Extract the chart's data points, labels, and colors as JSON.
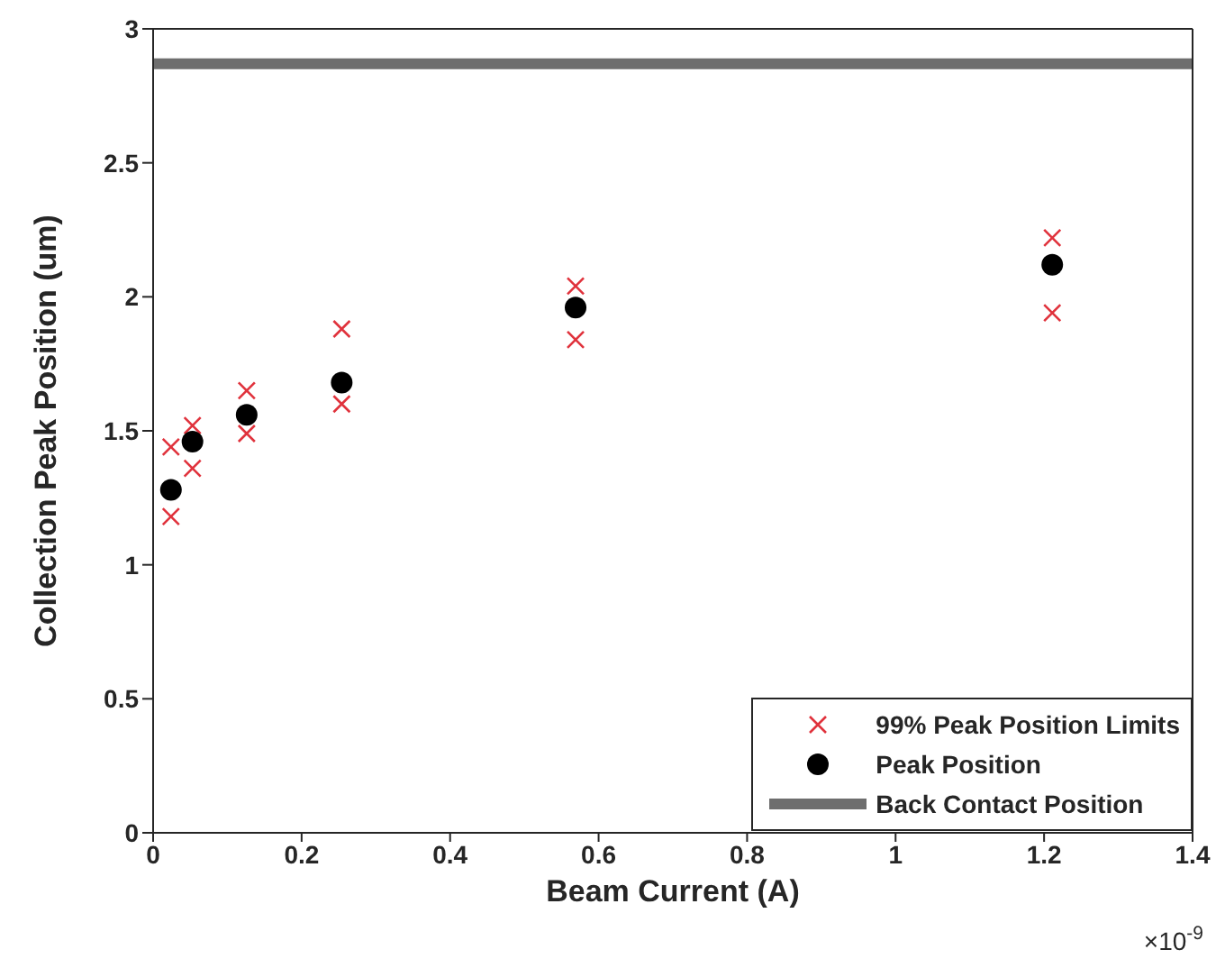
{
  "chart_data": {
    "type": "scatter",
    "xlabel": "Beam Current (A)",
    "ylabel": "Collection Peak Position (um)",
    "xlim": [
      0,
      1.4
    ],
    "xticks": [
      0,
      0.2,
      0.4,
      0.6,
      0.8,
      1,
      1.2,
      1.4
    ],
    "ylim": [
      0,
      3
    ],
    "yticks": [
      0,
      0.5,
      1,
      1.5,
      2,
      2.5,
      3
    ],
    "legend": "bottom right",
    "annotations": [
      "×10$^{-9}$"
    ],
    "series": [
      {
        "name": "99% Peak Position Limits",
        "marker": "cross",
        "color": "#e0323c",
        "x": [
          0.024,
          0.024,
          0.053,
          0.053,
          0.126,
          0.126,
          0.254,
          0.254,
          0.569,
          0.569,
          1.211,
          1.211
        ],
        "values": [
          1.44,
          1.18,
          1.52,
          1.36,
          1.65,
          1.49,
          1.88,
          1.6,
          2.04,
          1.84,
          2.22,
          1.94
        ]
      },
      {
        "name": "Peak Position",
        "marker": "circle",
        "color": "#000000",
        "x": [
          0.024,
          0.053,
          0.126,
          0.254,
          0.569,
          1.211
        ],
        "values": [
          1.28,
          1.46,
          1.56,
          1.68,
          1.96,
          2.12
        ]
      },
      {
        "name": "Back Contact Position",
        "type": "line",
        "marker": "none",
        "color": "#6e6e6e",
        "x": [
          0,
          1.4
        ],
        "values": [
          2.87,
          2.87
        ]
      }
    ]
  }
}
